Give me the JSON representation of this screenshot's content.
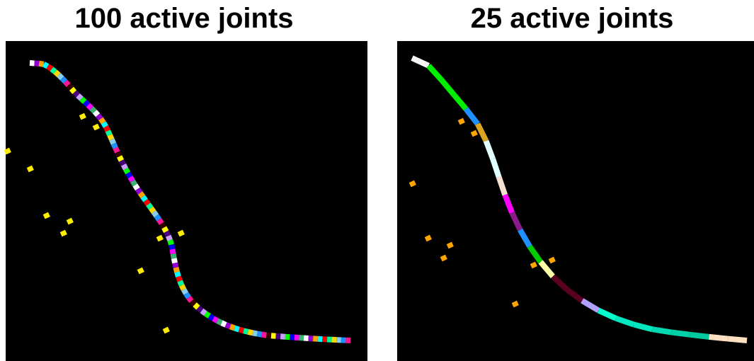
{
  "panels": [
    {
      "title": "100 active joints"
    },
    {
      "title": "25 active joints"
    }
  ]
}
